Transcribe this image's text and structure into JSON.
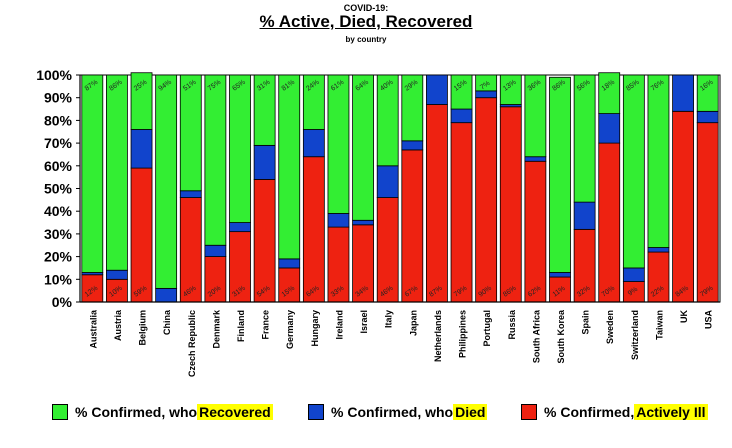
{
  "header": {
    "supertitle": "COVID-19:",
    "title": "% Active, Died, Recovered",
    "subtitle": "by country"
  },
  "legend": [
    {
      "prefix": "% Confirmed, who ",
      "highlight": "Recovered",
      "color": "#33ee33"
    },
    {
      "prefix": "% Confirmed, who ",
      "highlight": "Died",
      "color": "#1144cc"
    },
    {
      "prefix": "% Confirmed, ",
      "highlight": "Actively Ill",
      "color": "#ee2211"
    }
  ],
  "chart_data": {
    "type": "bar",
    "stacked": true,
    "title": "% Active, Died, Recovered",
    "subtitle": "by country",
    "ylim": [
      0,
      100
    ],
    "yticks": [
      "0%",
      "10%",
      "20%",
      "30%",
      "40%",
      "50%",
      "60%",
      "70%",
      "80%",
      "90%",
      "100%"
    ],
    "grid": false,
    "legend_position": "bottom",
    "categories": [
      "Australia",
      "Austria",
      "Belgium",
      "China",
      "Czech Republic",
      "Denmark",
      "Finland",
      "France",
      "Germany",
      "Hungary",
      "Ireland",
      "Israel",
      "Italy",
      "Japan",
      "Netherlands",
      "Philippines",
      "Portugal",
      "Russia",
      "South Africa",
      "South Korea",
      "Spain",
      "Sweden",
      "Switzerland",
      "Taiwan",
      "UK",
      "USA"
    ],
    "series": [
      {
        "name": "% Confirmed, Actively Ill",
        "color": "#ee2211",
        "values": [
          12,
          10,
          59,
          0,
          46,
          20,
          31,
          54,
          15,
          64,
          33,
          34,
          46,
          67,
          87,
          79,
          90,
          86,
          62,
          11,
          32,
          70,
          9,
          22,
          84,
          79
        ],
        "labels": [
          "12%",
          "10%",
          "59%",
          "",
          "46%",
          "20%",
          "31%",
          "54%",
          "15%",
          "64%",
          "33%",
          "34%",
          "46%",
          "67%",
          "87%",
          "79%",
          "90%",
          "86%",
          "62%",
          "11%",
          "32%",
          "70%",
          "9%",
          "22%",
          "84%",
          "79%"
        ]
      },
      {
        "name": "% Confirmed, who Died",
        "color": "#1144cc",
        "values": [
          1,
          4,
          17,
          6,
          3,
          5,
          4,
          15,
          4,
          12,
          6,
          2,
          14,
          4,
          13,
          6,
          3,
          1,
          2,
          2,
          12,
          13,
          6,
          2,
          16,
          5
        ],
        "labels": []
      },
      {
        "name": "% Confirmed, who Recovered",
        "color": "#33ee33",
        "values": [
          87,
          86,
          25,
          94,
          51,
          75,
          65,
          31,
          81,
          24,
          61,
          64,
          40,
          29,
          0,
          15,
          7,
          13,
          36,
          86,
          56,
          18,
          85,
          76,
          0,
          16
        ],
        "labels": [
          "87%",
          "86%",
          "25%",
          "94%",
          "51%",
          "75%",
          "65%",
          "31%",
          "81%",
          "24%",
          "61%",
          "64%",
          "40%",
          "29%",
          "",
          "15%",
          "7%",
          "13%",
          "36%",
          "86%",
          "56%",
          "18%",
          "85%",
          "76%",
          "",
          "16%"
        ]
      }
    ]
  }
}
